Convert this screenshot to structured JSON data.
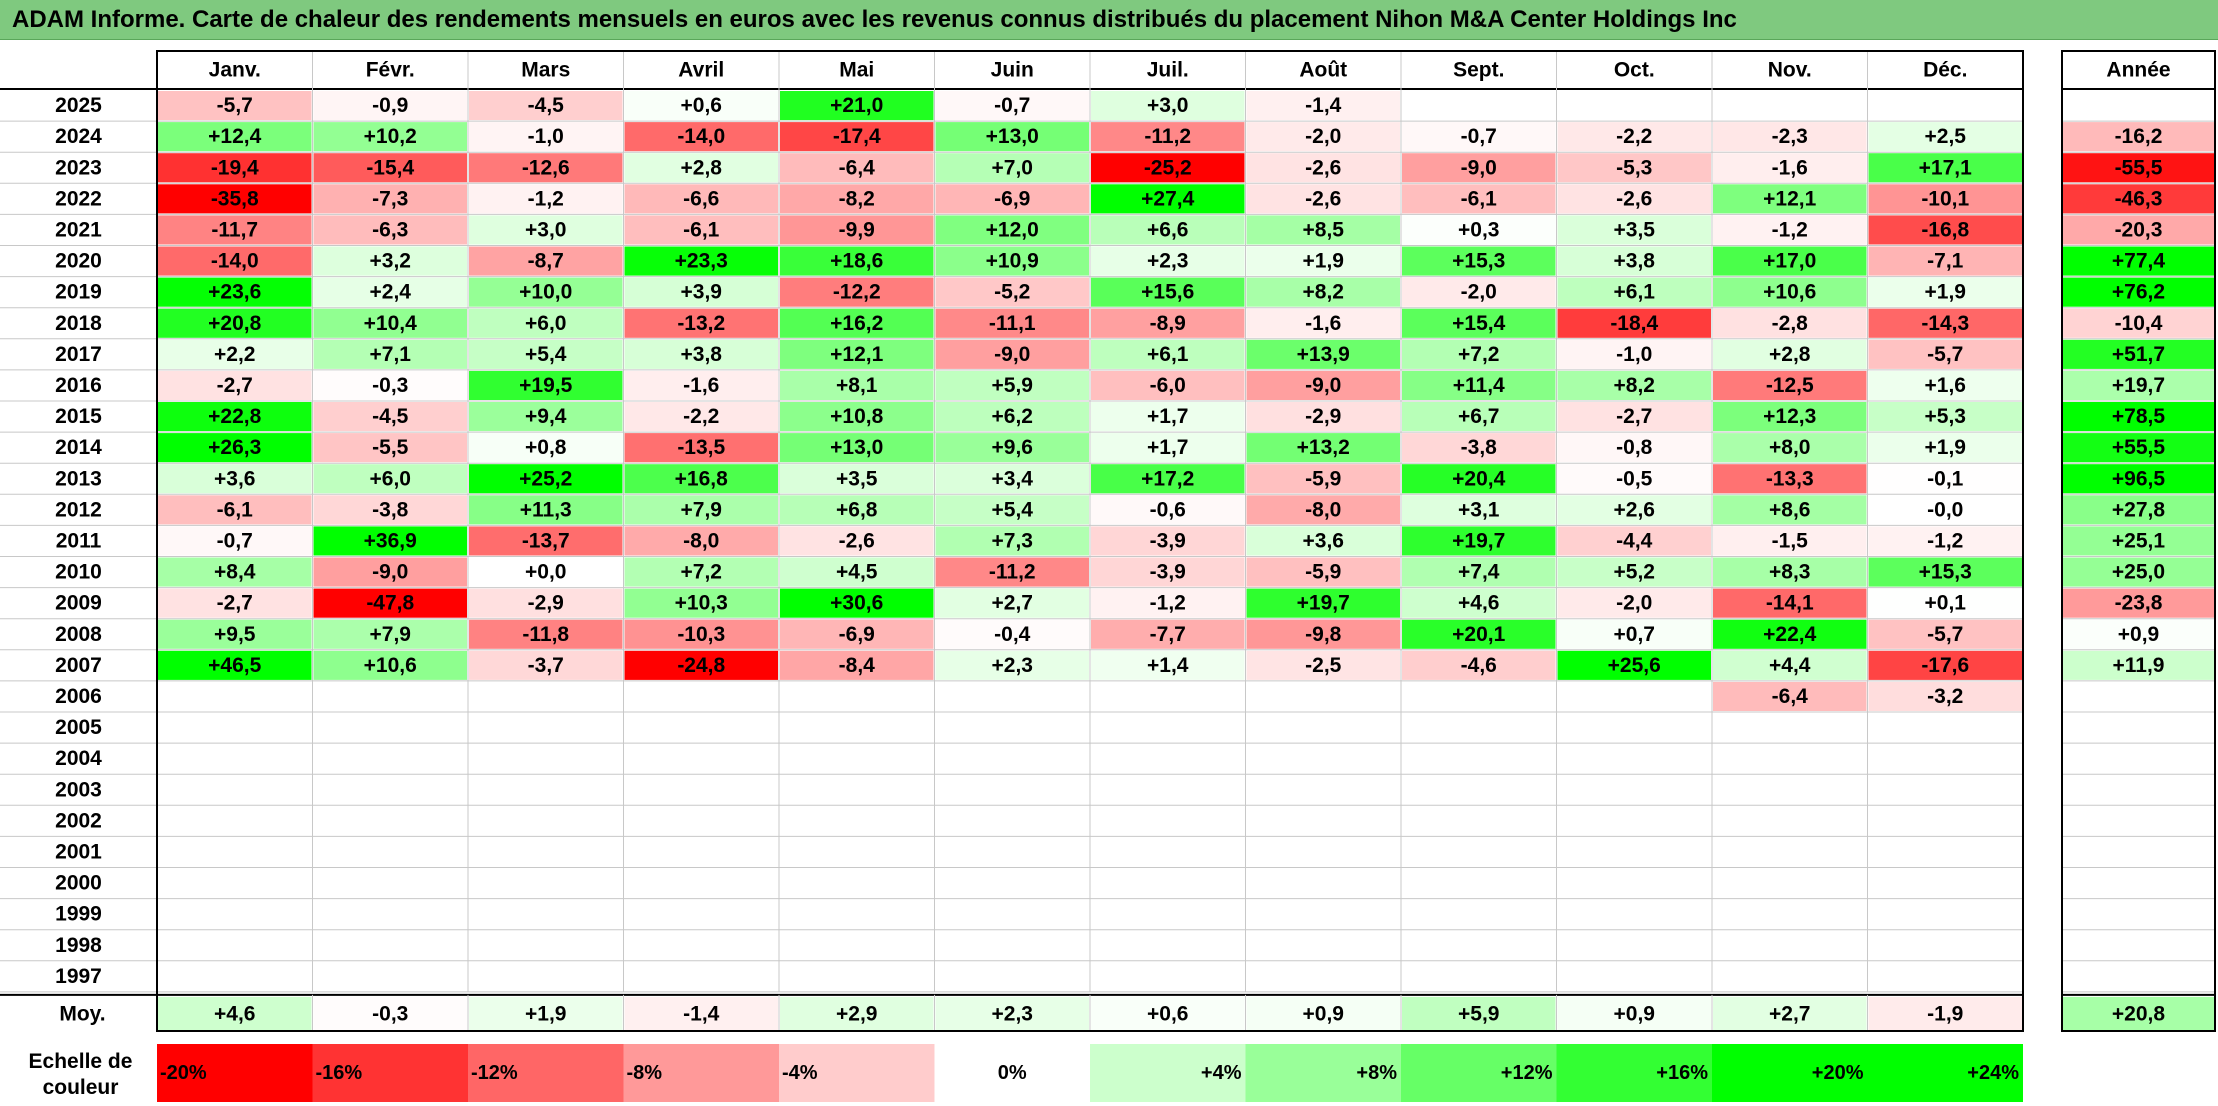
{
  "title": "ADAM Informe. Carte de chaleur des rendements mensuels en euros avec les revenus connus distribués du placement Nihon M&A Center Holdings Inc",
  "chart_data": {
    "type": "heatmap",
    "title": "ADAM Informe. Carte de chaleur des rendements mensuels en euros avec les revenus connus distribués du placement Nihon M&A Center Holdings Inc",
    "months": [
      "Janv.",
      "Févr.",
      "Mars",
      "Avril",
      "Mai",
      "Juin",
      "Juil.",
      "Août",
      "Sept.",
      "Oct.",
      "Nov.",
      "Déc."
    ],
    "year_header": "Année",
    "rows": [
      {
        "year": "2025",
        "values": [
          "-5,7",
          "-0,9",
          "-4,5",
          "+0,6",
          "+21,0",
          "-0,7",
          "+3,0",
          "-1,4",
          "",
          "",
          "",
          ""
        ],
        "annual": ""
      },
      {
        "year": "2024",
        "values": [
          "+12,4",
          "+10,2",
          "-1,0",
          "-14,0",
          "-17,4",
          "+13,0",
          "-11,2",
          "-2,0",
          "-0,7",
          "-2,2",
          "-2,3",
          "+2,5"
        ],
        "annual": "-16,2"
      },
      {
        "year": "2023",
        "values": [
          "-19,4",
          "-15,4",
          "-12,6",
          "+2,8",
          "-6,4",
          "+7,0",
          "-25,2",
          "-2,6",
          "-9,0",
          "-5,3",
          "-1,6",
          "+17,1"
        ],
        "annual": "-55,5"
      },
      {
        "year": "2022",
        "values": [
          "-35,8",
          "-7,3",
          "-1,2",
          "-6,6",
          "-8,2",
          "-6,9",
          "+27,4",
          "-2,6",
          "-6,1",
          "-2,6",
          "+12,1",
          "-10,1"
        ],
        "annual": "-46,3"
      },
      {
        "year": "2021",
        "values": [
          "-11,7",
          "-6,3",
          "+3,0",
          "-6,1",
          "-9,9",
          "+12,0",
          "+6,6",
          "+8,5",
          "+0,3",
          "+3,5",
          "-1,2",
          "-16,8"
        ],
        "annual": "-20,3"
      },
      {
        "year": "2020",
        "values": [
          "-14,0",
          "+3,2",
          "-8,7",
          "+23,3",
          "+18,6",
          "+10,9",
          "+2,3",
          "+1,9",
          "+15,3",
          "+3,8",
          "+17,0",
          "-7,1"
        ],
        "annual": "+77,4"
      },
      {
        "year": "2019",
        "values": [
          "+23,6",
          "+2,4",
          "+10,0",
          "+3,9",
          "-12,2",
          "-5,2",
          "+15,6",
          "+8,2",
          "-2,0",
          "+6,1",
          "+10,6",
          "+1,9"
        ],
        "annual": "+76,2"
      },
      {
        "year": "2018",
        "values": [
          "+20,8",
          "+10,4",
          "+6,0",
          "-13,2",
          "+16,2",
          "-11,1",
          "-8,9",
          "-1,6",
          "+15,4",
          "-18,4",
          "-2,8",
          "-14,3"
        ],
        "annual": "-10,4"
      },
      {
        "year": "2017",
        "values": [
          "+2,2",
          "+7,1",
          "+5,4",
          "+3,8",
          "+12,1",
          "-9,0",
          "+6,1",
          "+13,9",
          "+7,2",
          "-1,0",
          "+2,8",
          "-5,7"
        ],
        "annual": "+51,7"
      },
      {
        "year": "2016",
        "values": [
          "-2,7",
          "-0,3",
          "+19,5",
          "-1,6",
          "+8,1",
          "+5,9",
          "-6,0",
          "-9,0",
          "+11,4",
          "+8,2",
          "-12,5",
          "+1,6"
        ],
        "annual": "+19,7"
      },
      {
        "year": "2015",
        "values": [
          "+22,8",
          "-4,5",
          "+9,4",
          "-2,2",
          "+10,8",
          "+6,2",
          "+1,7",
          "-2,9",
          "+6,7",
          "-2,7",
          "+12,3",
          "+5,3"
        ],
        "annual": "+78,5"
      },
      {
        "year": "2014",
        "values": [
          "+26,3",
          "-5,5",
          "+0,8",
          "-13,5",
          "+13,0",
          "+9,6",
          "+1,7",
          "+13,2",
          "-3,8",
          "-0,8",
          "+8,0",
          "+1,9"
        ],
        "annual": "+55,5"
      },
      {
        "year": "2013",
        "values": [
          "+3,6",
          "+6,0",
          "+25,2",
          "+16,8",
          "+3,5",
          "+3,4",
          "+17,2",
          "-5,9",
          "+20,4",
          "-0,5",
          "-13,3",
          "-0,1"
        ],
        "annual": "+96,5"
      },
      {
        "year": "2012",
        "values": [
          "-6,1",
          "-3,8",
          "+11,3",
          "+7,9",
          "+6,8",
          "+5,4",
          "-0,6",
          "-8,0",
          "+3,1",
          "+2,6",
          "+8,6",
          "-0,0"
        ],
        "annual": "+27,8"
      },
      {
        "year": "2011",
        "values": [
          "-0,7",
          "+36,9",
          "-13,7",
          "-8,0",
          "-2,6",
          "+7,3",
          "-3,9",
          "+3,6",
          "+19,7",
          "-4,4",
          "-1,5",
          "-1,2"
        ],
        "annual": "+25,1"
      },
      {
        "year": "2010",
        "values": [
          "+8,4",
          "-9,0",
          "+0,0",
          "+7,2",
          "+4,5",
          "-11,2",
          "-3,9",
          "-5,9",
          "+7,4",
          "+5,2",
          "+8,3",
          "+15,3"
        ],
        "annual": "+25,0"
      },
      {
        "year": "2009",
        "values": [
          "-2,7",
          "-47,8",
          "-2,9",
          "+10,3",
          "+30,6",
          "+2,7",
          "-1,2",
          "+19,7",
          "+4,6",
          "-2,0",
          "-14,1",
          "+0,1"
        ],
        "annual": "-23,8"
      },
      {
        "year": "2008",
        "values": [
          "+9,5",
          "+7,9",
          "-11,8",
          "-10,3",
          "-6,9",
          "-0,4",
          "-7,7",
          "-9,8",
          "+20,1",
          "+0,7",
          "+22,4",
          "-5,7"
        ],
        "annual": "+0,9"
      },
      {
        "year": "2007",
        "values": [
          "+46,5",
          "+10,6",
          "-3,7",
          "-24,8",
          "-8,4",
          "+2,3",
          "+1,4",
          "-2,5",
          "-4,6",
          "+25,6",
          "+4,4",
          "-17,6"
        ],
        "annual": "+11,9"
      },
      {
        "year": "2006",
        "values": [
          "",
          "",
          "",
          "",
          "",
          "",
          "",
          "",
          "",
          "",
          "-6,4",
          "-3,2"
        ],
        "annual": ""
      },
      {
        "year": "2005",
        "values": [
          "",
          "",
          "",
          "",
          "",
          "",
          "",
          "",
          "",
          "",
          "",
          ""
        ],
        "annual": ""
      },
      {
        "year": "2004",
        "values": [
          "",
          "",
          "",
          "",
          "",
          "",
          "",
          "",
          "",
          "",
          "",
          ""
        ],
        "annual": ""
      },
      {
        "year": "2003",
        "values": [
          "",
          "",
          "",
          "",
          "",
          "",
          "",
          "",
          "",
          "",
          "",
          ""
        ],
        "annual": ""
      },
      {
        "year": "2002",
        "values": [
          "",
          "",
          "",
          "",
          "",
          "",
          "",
          "",
          "",
          "",
          "",
          ""
        ],
        "annual": ""
      },
      {
        "year": "2001",
        "values": [
          "",
          "",
          "",
          "",
          "",
          "",
          "",
          "",
          "",
          "",
          "",
          ""
        ],
        "annual": ""
      },
      {
        "year": "2000",
        "values": [
          "",
          "",
          "",
          "",
          "",
          "",
          "",
          "",
          "",
          "",
          "",
          ""
        ],
        "annual": ""
      },
      {
        "year": "1999",
        "values": [
          "",
          "",
          "",
          "",
          "",
          "",
          "",
          "",
          "",
          "",
          "",
          ""
        ],
        "annual": ""
      },
      {
        "year": "1998",
        "values": [
          "",
          "",
          "",
          "",
          "",
          "",
          "",
          "",
          "",
          "",
          "",
          ""
        ],
        "annual": ""
      },
      {
        "year": "1997",
        "values": [
          "",
          "",
          "",
          "",
          "",
          "",
          "",
          "",
          "",
          "",
          "",
          ""
        ],
        "annual": ""
      }
    ],
    "average": {
      "label": "Moy.",
      "values": [
        "+4,6",
        "-0,3",
        "+1,9",
        "-1,4",
        "+2,9",
        "+2,3",
        "+0,6",
        "+0,9",
        "+5,9",
        "+0,9",
        "+2,7",
        "-1,9"
      ],
      "annual": "+20,8"
    },
    "color_scale": {
      "label_line1": "Echelle de",
      "label_line2": "couleur",
      "items": [
        {
          "label": "-20%",
          "value": -20
        },
        {
          "label": "-16%",
          "value": -16
        },
        {
          "label": "-12%",
          "value": -12
        },
        {
          "label": "-8%",
          "value": -8
        },
        {
          "label": "-4%",
          "value": -4
        },
        {
          "label": "0%",
          "value": 0
        },
        {
          "label": "+4%",
          "value": 4
        },
        {
          "label": "+8%",
          "value": 8
        },
        {
          "label": "+12%",
          "value": 12
        },
        {
          "label": "+16%",
          "value": 16
        },
        {
          "label": "+20%",
          "value": 20
        },
        {
          "label": "+24%",
          "value": 24
        }
      ]
    },
    "colors": {
      "title_bg": "#7fc97f",
      "negative_full": "#ff0000",
      "positive_full": "#00ff00",
      "neutral": "#ffffff"
    }
  }
}
